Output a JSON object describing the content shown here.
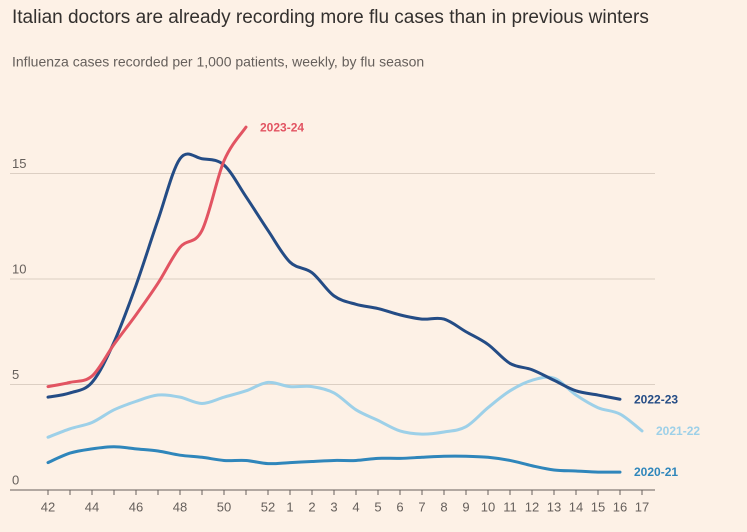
{
  "chart_data": {
    "type": "line",
    "title": "Italian doctors are already recording more flu cases than in previous winters",
    "subtitle": "Influenza cases recorded per 1,000 patients, weekly, by flu season",
    "categories": [
      "42",
      null,
      "44",
      null,
      "46",
      null,
      "48",
      null,
      "50",
      null,
      "52",
      "1",
      "2",
      "3",
      "4",
      "5",
      "6",
      "7",
      "8",
      "9",
      "10",
      "11",
      "12",
      "13",
      "14",
      "15",
      "16",
      "17"
    ],
    "series": [
      {
        "name": "2020-21",
        "color": "#2f86bb",
        "values": [
          1.3,
          1.75,
          1.95,
          2.05,
          1.95,
          1.85,
          1.65,
          1.55,
          1.4,
          1.4,
          1.25,
          1.3,
          1.35,
          1.4,
          1.4,
          1.5,
          1.5,
          1.55,
          1.6,
          1.6,
          1.55,
          1.4,
          1.15,
          0.95,
          0.9,
          0.85,
          0.85,
          null
        ]
      },
      {
        "name": "2021-22",
        "color": "#9dd0e8",
        "values": [
          2.5,
          2.9,
          3.2,
          3.8,
          4.2,
          4.5,
          4.4,
          4.1,
          4.4,
          4.7,
          5.1,
          4.9,
          4.9,
          4.6,
          3.8,
          3.3,
          2.8,
          2.65,
          2.75,
          3.0,
          3.9,
          4.7,
          5.2,
          5.3,
          4.5,
          3.9,
          3.6,
          2.8
        ]
      },
      {
        "name": "2022-23",
        "color": "#244c85",
        "values": [
          4.4,
          4.6,
          5.1,
          7.0,
          9.7,
          12.8,
          15.7,
          15.7,
          15.4,
          13.9,
          12.3,
          10.8,
          10.3,
          9.2,
          8.8,
          8.6,
          8.3,
          8.1,
          8.1,
          7.5,
          6.9,
          6.0,
          5.7,
          5.2,
          4.7,
          4.5,
          4.3,
          null
        ]
      },
      {
        "name": "2023-24",
        "color": "#e25462",
        "values": [
          4.9,
          5.1,
          5.4,
          6.9,
          8.3,
          9.8,
          11.5,
          12.3,
          15.6,
          17.2,
          null,
          null,
          null,
          null,
          null,
          null,
          null,
          null,
          null,
          null,
          null,
          null,
          null,
          null,
          null,
          null,
          null,
          null
        ]
      }
    ],
    "ylim": [
      0,
      17.5
    ],
    "yticks": [
      0,
      5,
      10,
      15
    ],
    "grid": true
  }
}
